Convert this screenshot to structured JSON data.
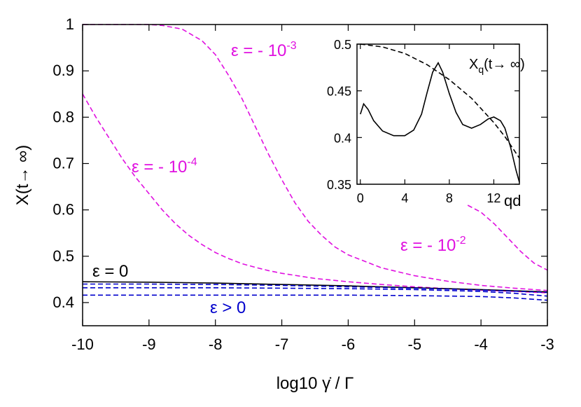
{
  "chart_data": [
    {
      "type": "line",
      "xlabel": "log10 γ̇ / Γ",
      "ylabel": "X(t→ ∞)",
      "xlim": [
        -10,
        -3
      ],
      "ylim": [
        0.35,
        1.0
      ],
      "xticks": [
        -10,
        -9,
        -8,
        -7,
        -6,
        -5,
        -4,
        -3
      ],
      "xtick_labels": [
        "-10",
        "-9",
        "-8",
        "-7",
        "-6",
        "-5",
        "-4",
        "-3"
      ],
      "yticks": [
        0.4,
        0.5,
        0.6,
        0.7,
        0.8,
        0.9,
        1.0
      ],
      "ytick_labels": [
        "0.4",
        "0.5",
        "0.6",
        "0.7",
        "0.8",
        "0.9",
        "1"
      ],
      "grid": false,
      "colors": {
        "magenta": "#e010e0",
        "black": "#000000",
        "blue": "#0000cc"
      },
      "annotations": [
        {
          "text": "ε = - 10",
          "sup": "-3",
          "color": "#e010e0"
        },
        {
          "text": "ε = - 10",
          "sup": "-4",
          "color": "#e010e0"
        },
        {
          "text": "ε = - 10",
          "sup": "-2",
          "color": "#e010e0"
        },
        {
          "text": "ε = 0",
          "sup": "",
          "color": "#000000"
        },
        {
          "text": "ε > 0",
          "sup": "",
          "color": "#0000cc"
        }
      ],
      "series": [
        {
          "color": "#e010e0",
          "style": "dashed",
          "x": [
            -10,
            -9.5,
            -9,
            -8.8,
            -8.5,
            -8.2,
            -8,
            -7.8,
            -7.6,
            -7.4,
            -7.2,
            -7,
            -6.8,
            -6.6,
            -6.4,
            -6.2,
            -6,
            -5.5,
            -5,
            -4.5,
            -4,
            -3.5,
            -3
          ],
          "y": [
            1.0,
            1.0,
            1.0,
            0.998,
            0.99,
            0.965,
            0.935,
            0.89,
            0.84,
            0.78,
            0.72,
            0.665,
            0.615,
            0.575,
            0.545,
            0.52,
            0.503,
            0.475,
            0.458,
            0.446,
            0.437,
            0.431,
            0.426
          ]
        },
        {
          "color": "#e010e0",
          "style": "dashed",
          "x": [
            -10,
            -9.8,
            -9.6,
            -9.4,
            -9.2,
            -9,
            -8.8,
            -8.6,
            -8.4,
            -8.2,
            -8,
            -7.8,
            -7.6,
            -7.4,
            -7.2,
            -7,
            -6.5,
            -6,
            -5.5,
            -5,
            -4.5,
            -4,
            -3.5,
            -3
          ],
          "y": [
            0.85,
            0.8,
            0.755,
            0.71,
            0.67,
            0.635,
            0.6,
            0.57,
            0.545,
            0.525,
            0.508,
            0.495,
            0.484,
            0.476,
            0.469,
            0.463,
            0.452,
            0.445,
            0.439,
            0.434,
            0.43,
            0.427,
            0.424,
            0.421
          ]
        },
        {
          "color": "#e010e0",
          "style": "dashed",
          "x": [
            -4.2,
            -4,
            -3.8,
            -3.6,
            -3.4,
            -3.2,
            -3
          ],
          "y": [
            0.61,
            0.595,
            0.57,
            0.54,
            0.51,
            0.485,
            0.47
          ]
        },
        {
          "color": "#000000",
          "style": "solid",
          "x": [
            -10,
            -9,
            -8,
            -7,
            -6,
            -5,
            -4,
            -3
          ],
          "y": [
            0.445,
            0.444,
            0.442,
            0.439,
            0.436,
            0.432,
            0.428,
            0.423
          ]
        },
        {
          "color": "#0000cc",
          "style": "dashed",
          "x": [
            -10,
            -9,
            -8,
            -7,
            -6,
            -5,
            -4,
            -3
          ],
          "y": [
            0.44,
            0.44,
            0.439,
            0.437,
            0.434,
            0.431,
            0.427,
            0.422
          ]
        },
        {
          "color": "#0000cc",
          "style": "dashed",
          "x": [
            -10,
            -9,
            -8,
            -7,
            -6,
            -5,
            -4,
            -3.5,
            -3
          ],
          "y": [
            0.432,
            0.432,
            0.432,
            0.431,
            0.43,
            0.428,
            0.424,
            0.42,
            0.414
          ]
        },
        {
          "color": "#0000cc",
          "style": "dashed",
          "x": [
            -10,
            -9,
            -8,
            -7,
            -6,
            -5,
            -4,
            -3.5,
            -3
          ],
          "y": [
            0.416,
            0.416,
            0.416,
            0.416,
            0.416,
            0.415,
            0.413,
            0.41,
            0.405
          ]
        }
      ]
    },
    {
      "type": "line",
      "title": "X_q(t→ ∞)",
      "title_main": "X",
      "title_sub": "q",
      "title_rest": "(t→ ∞)",
      "xlabel": "qd",
      "xlim": [
        -0.3,
        14.3
      ],
      "ylim": [
        0.35,
        0.5
      ],
      "xticks": [
        0,
        4,
        8,
        12
      ],
      "xtick_labels": [
        "0",
        "4",
        "8",
        "12"
      ],
      "yticks": [
        0.35,
        0.4,
        0.45,
        0.5
      ],
      "ytick_labels": [
        "0.35",
        "0.4",
        "0.45",
        "0.5"
      ],
      "series": [
        {
          "color": "#000000",
          "style": "solid",
          "x": [
            0,
            0.3,
            0.7,
            1.2,
            2,
            3,
            4,
            4.8,
            5.5,
            6,
            6.5,
            7,
            7.4,
            8,
            8.6,
            9.2,
            10,
            10.8,
            11.5,
            12,
            12.6,
            13,
            13.5,
            14,
            14.3
          ],
          "y": [
            0.425,
            0.436,
            0.43,
            0.418,
            0.407,
            0.402,
            0.402,
            0.408,
            0.425,
            0.448,
            0.47,
            0.48,
            0.47,
            0.447,
            0.427,
            0.414,
            0.41,
            0.414,
            0.42,
            0.422,
            0.418,
            0.41,
            0.39,
            0.365,
            0.352
          ]
        },
        {
          "color": "#000000",
          "style": "dashed",
          "x": [
            0,
            2,
            4,
            6,
            8,
            10,
            12,
            13,
            14.3
          ],
          "y": [
            0.5,
            0.497,
            0.49,
            0.478,
            0.462,
            0.442,
            0.416,
            0.401,
            0.378
          ]
        }
      ]
    }
  ]
}
